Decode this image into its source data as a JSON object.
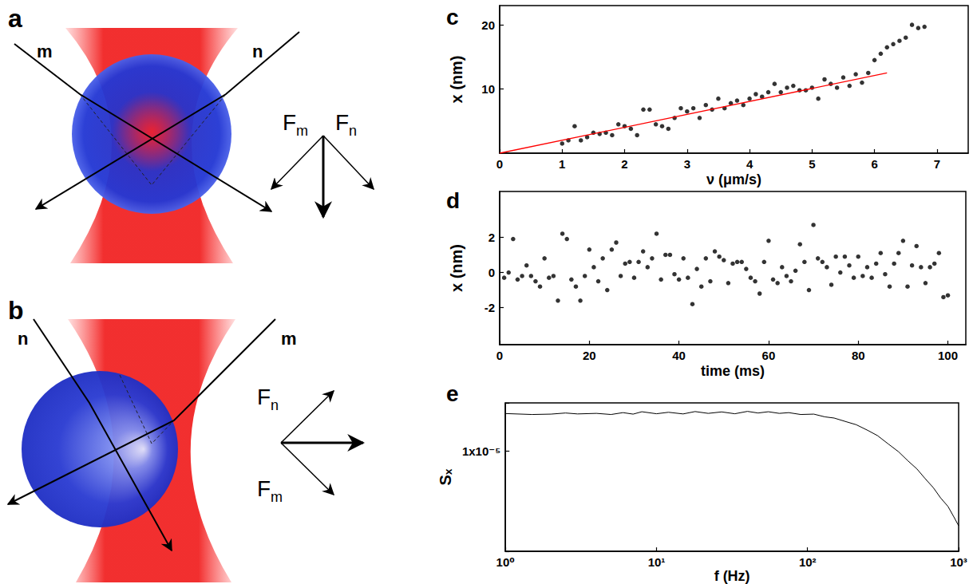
{
  "diagrams": [
    {
      "label": "a",
      "rays": [
        "m",
        "n"
      ],
      "forces": [
        {
          "base": "F",
          "sub": "m"
        },
        {
          "base": "F",
          "sub": "n"
        }
      ]
    },
    {
      "label": "b",
      "rays": [
        "n",
        "m"
      ],
      "forces": [
        {
          "base": "F",
          "sub": "n"
        },
        {
          "base": "F",
          "sub": "m"
        }
      ]
    }
  ],
  "chart_data": [
    {
      "type": "scatter",
      "title": "c",
      "x_label": "ν (μm/s)",
      "y_label": "x (nm)",
      "xlim": [
        0,
        7.5
      ],
      "xticks": [
        0,
        1,
        2,
        3,
        4,
        5,
        6,
        7
      ],
      "ylim": [
        0,
        23
      ],
      "yticks": [
        10,
        20
      ],
      "grid": false,
      "series": [
        {
          "type": "scatter",
          "color": "#000000",
          "marker": "circle",
          "x": [
            1.0,
            1.1,
            1.2,
            1.3,
            1.4,
            1.5,
            1.6,
            1.7,
            1.8,
            1.9,
            2.0,
            2.1,
            2.2,
            2.3,
            2.4,
            2.5,
            2.6,
            2.7,
            2.8,
            2.9,
            3.0,
            3.1,
            3.2,
            3.3,
            3.4,
            3.5,
            3.6,
            3.7,
            3.8,
            3.9,
            4.0,
            4.1,
            4.2,
            4.3,
            4.4,
            4.5,
            4.6,
            4.7,
            4.8,
            4.9,
            5.0,
            5.1,
            5.2,
            5.3,
            5.4,
            5.5,
            5.6,
            5.7,
            5.8,
            5.9,
            6.0,
            6.1,
            6.2,
            6.3,
            6.4,
            6.5,
            6.6,
            6.7,
            6.8
          ],
          "values": [
            1.5,
            2.0,
            4.2,
            2.0,
            2.5,
            3.2,
            3.0,
            3.2,
            2.8,
            4.5,
            4.2,
            3.8,
            2.8,
            6.8,
            6.8,
            4.5,
            4.2,
            3.8,
            5.5,
            7.0,
            6.5,
            7.0,
            5.5,
            7.5,
            6.8,
            8.5,
            7.0,
            7.8,
            8.2,
            7.5,
            8.5,
            9.2,
            8.8,
            9.5,
            10.8,
            9.5,
            10.2,
            10.5,
            9.8,
            9.8,
            10.2,
            8.5,
            11.5,
            10.8,
            10.2,
            11.8,
            10.5,
            12.3,
            11.0,
            12.5,
            14.5,
            15.5,
            16.5,
            17.0,
            17.5,
            18.0,
            20.0,
            19.5,
            19.7
          ]
        },
        {
          "type": "line",
          "color": "#ff0000",
          "line_style": "solid",
          "x": [
            0,
            6.2
          ],
          "values": [
            0,
            12.5
          ]
        }
      ]
    },
    {
      "type": "scatter",
      "title": "d",
      "x_label": "time (ms)",
      "y_label": "x (nm)",
      "xlim": [
        0,
        104
      ],
      "xticks": [
        0,
        20,
        40,
        60,
        80,
        100
      ],
      "ylim": [
        -4.1,
        4.6
      ],
      "yticks": [
        -2,
        0,
        2
      ],
      "grid": false,
      "series": [
        {
          "type": "scatter",
          "color": "#000000",
          "marker": "circle",
          "x": [
            1,
            2,
            3,
            4,
            5,
            6,
            7,
            8,
            9,
            10,
            11,
            12,
            13,
            14,
            15,
            16,
            17,
            18,
            19,
            20,
            21,
            22,
            23,
            24,
            25,
            26,
            27,
            28,
            29,
            30,
            31,
            32,
            33,
            34,
            35,
            36,
            37,
            38,
            39,
            40,
            41,
            42,
            43,
            44,
            45,
            46,
            47,
            48,
            49,
            50,
            51,
            52,
            53,
            54,
            55,
            56,
            57,
            58,
            59,
            60,
            61,
            62,
            63,
            64,
            65,
            66,
            67,
            68,
            69,
            70,
            71,
            72,
            73,
            74,
            75,
            76,
            77,
            78,
            79,
            80,
            81,
            82,
            83,
            84,
            85,
            86,
            87,
            88,
            89,
            90,
            91,
            92,
            93,
            94,
            95,
            96,
            97,
            98,
            99,
            100
          ],
          "values": [
            -0.3,
            0.0,
            1.9,
            -0.4,
            -0.2,
            0.4,
            -0.2,
            -0.5,
            -0.8,
            0.8,
            -0.3,
            -0.2,
            -1.6,
            2.2,
            1.9,
            -0.4,
            -0.8,
            -1.6,
            -0.2,
            1.3,
            0.3,
            -0.5,
            0.8,
            -1.0,
            1.3,
            1.7,
            -0.2,
            0.5,
            0.6,
            -0.3,
            0.6,
            1.2,
            0.3,
            0.8,
            2.2,
            -0.4,
            1.0,
            1.0,
            -0.1,
            -0.4,
            0.8,
            -0.3,
            -1.8,
            0.2,
            -0.8,
            0.8,
            -0.5,
            1.2,
            0.9,
            0.7,
            -0.6,
            0.5,
            0.6,
            0.6,
            0.2,
            -0.3,
            -0.5,
            -1.2,
            0.6,
            1.8,
            -0.4,
            -0.6,
            0.3,
            -0.2,
            -0.5,
            0.1,
            1.6,
            0.6,
            -1.0,
            2.7,
            0.8,
            0.6,
            0.3,
            -0.7,
            0.9,
            0.0,
            0.9,
            0.4,
            -0.3,
            0.9,
            -0.2,
            0.3,
            -0.3,
            0.5,
            1.1,
            -0.1,
            -0.8,
            0.5,
            1.1,
            1.8,
            -0.8,
            0.4,
            1.5,
            0.3,
            -0.6,
            0.3,
            0.5,
            1.1,
            -1.4,
            -1.3
          ]
        }
      ]
    },
    {
      "type": "line",
      "title": "e",
      "x_label": "f (Hz)",
      "y_label": "Sₓ",
      "log": true,
      "xlim": [
        1,
        1000
      ],
      "xticks": [
        {
          "value": 1,
          "label": "10⁰"
        },
        {
          "value": 10,
          "label": "10¹"
        },
        {
          "value": 100,
          "label": "10²"
        },
        {
          "value": 1000,
          "label": "10³"
        }
      ],
      "ylim": [
        1e-06,
        3e-05
      ],
      "yticks": [
        {
          "value": 1e-05,
          "label": "1x10⁻⁵"
        }
      ],
      "grid": false,
      "series": [
        {
          "type": "line",
          "color": "#000000",
          "line_style": "solid",
          "x": [
            1,
            1.5,
            2,
            2.5,
            3,
            4,
            5,
            6,
            7,
            8,
            10,
            12,
            15,
            18,
            22,
            27,
            33,
            40,
            47,
            55,
            65,
            75,
            90,
            110,
            130,
            150,
            180,
            210,
            250,
            290,
            340,
            400,
            460,
            530,
            600,
            680,
            760,
            850,
            930,
            1000
          ],
          "values": [
            2.35e-05,
            2.3e-05,
            2.32e-05,
            2.38e-05,
            2.33e-05,
            2.36e-05,
            2.3e-05,
            2.4e-05,
            2.32e-05,
            2.45e-05,
            2.34e-05,
            2.42e-05,
            2.33e-05,
            2.46e-05,
            2.36e-05,
            2.44e-05,
            2.34e-05,
            2.47e-05,
            2.38e-05,
            2.45e-05,
            2.36e-05,
            2.4e-05,
            2.3e-05,
            2.32e-05,
            2.18e-05,
            2.12e-05,
            1.95e-05,
            1.82e-05,
            1.6e-05,
            1.42e-05,
            1.18e-05,
            9.8e-06,
            8e-06,
            6.6e-06,
            5.3e-06,
            4.3e-06,
            3.4e-06,
            2.8e-06,
            2.2e-06,
            1.8e-06
          ]
        }
      ]
    }
  ]
}
